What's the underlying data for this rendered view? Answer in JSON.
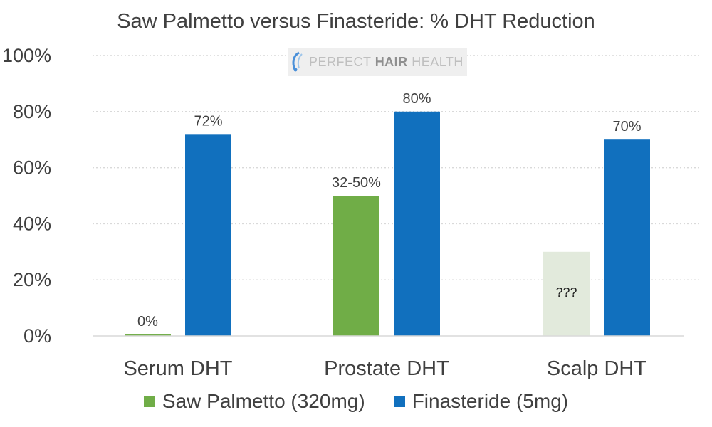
{
  "watermark": {
    "text_light": "PERFECT ",
    "text_bold": "HAIR",
    "text_end": " HEALTH"
  },
  "colors": {
    "saw_palmetto": "#70ad47",
    "finasteride": "#1170be",
    "uncertain": "#e2eadc",
    "gridline": "#d9d9d9",
    "axis": "#d9d9d9",
    "text": "#404040"
  },
  "chart_data": {
    "type": "bar",
    "title": "Saw Palmetto versus Finasteride: % DHT Reduction",
    "categories": [
      "Serum DHT",
      "Prostate DHT",
      "Scalp DHT"
    ],
    "ylim": [
      0,
      100
    ],
    "yticks": [
      0,
      20,
      40,
      60,
      80,
      100
    ],
    "ytick_labels": [
      "0%",
      "20%",
      "40%",
      "60%",
      "80%",
      "100%"
    ],
    "grid": true,
    "legend_position": "bottom",
    "series": [
      {
        "name": "Saw Palmetto (320mg)",
        "color": "#70ad47",
        "values": [
          0.5,
          50,
          30
        ],
        "labels": [
          "0%",
          "32-50%",
          "???"
        ],
        "uncertain": [
          false,
          false,
          true
        ]
      },
      {
        "name": "Finasteride (5mg)",
        "color": "#1170be",
        "values": [
          72,
          80,
          70
        ],
        "labels": [
          "72%",
          "80%",
          "70%"
        ],
        "uncertain": [
          false,
          false,
          false
        ]
      }
    ]
  }
}
